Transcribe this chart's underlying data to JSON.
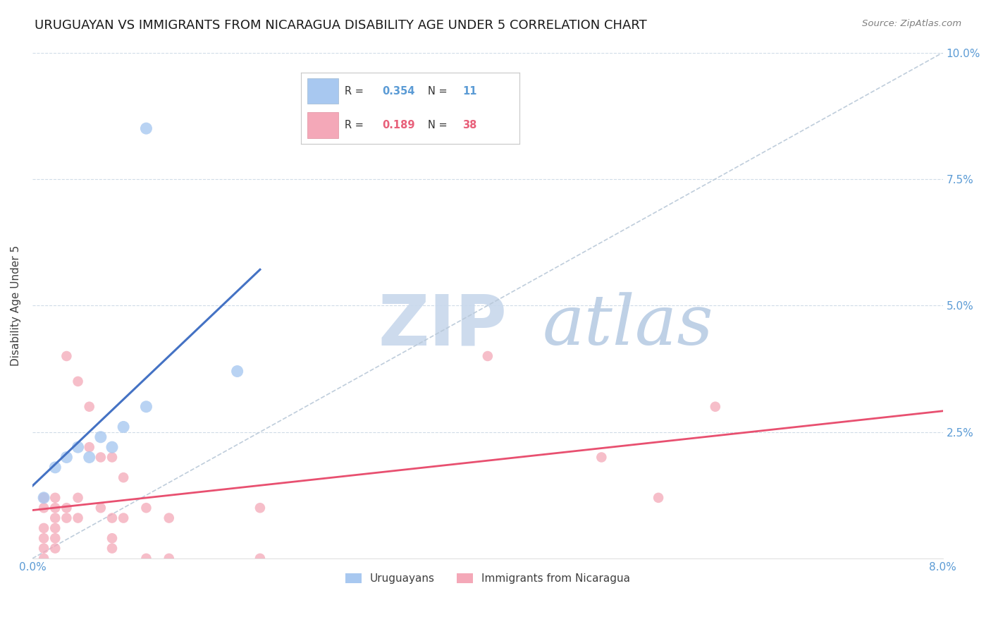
{
  "title": "URUGUAYAN VS IMMIGRANTS FROM NICARAGUA DISABILITY AGE UNDER 5 CORRELATION CHART",
  "source": "Source: ZipAtlas.com",
  "ylabel": "Disability Age Under 5",
  "xlim": [
    0.0,
    0.08
  ],
  "ylim": [
    0.0,
    0.1
  ],
  "xticks": [
    0.0,
    0.08
  ],
  "yticks": [
    0.0,
    0.025,
    0.05,
    0.075,
    0.1
  ],
  "xtick_labels": [
    "0.0%",
    "8.0%"
  ],
  "ytick_labels": [
    "",
    "2.5%",
    "5.0%",
    "7.5%",
    "10.0%"
  ],
  "grid_yticks": [
    0.025,
    0.05,
    0.075,
    0.1
  ],
  "legend_entries": [
    {
      "label": "Uruguayans",
      "R": "0.354",
      "N": "11",
      "color": "#a8c8f0"
    },
    {
      "label": "Immigrants from Nicaragua",
      "R": "0.189",
      "N": "38",
      "color": "#f0a0b8"
    }
  ],
  "uruguayan_points": [
    [
      0.001,
      0.012
    ],
    [
      0.002,
      0.018
    ],
    [
      0.003,
      0.02
    ],
    [
      0.004,
      0.022
    ],
    [
      0.005,
      0.02
    ],
    [
      0.006,
      0.024
    ],
    [
      0.007,
      0.022
    ],
    [
      0.008,
      0.026
    ],
    [
      0.01,
      0.03
    ],
    [
      0.018,
      0.037
    ],
    [
      0.01,
      0.085
    ]
  ],
  "nicaragua_points": [
    [
      0.001,
      0.012
    ],
    [
      0.001,
      0.01
    ],
    [
      0.001,
      0.006
    ],
    [
      0.001,
      0.004
    ],
    [
      0.001,
      0.002
    ],
    [
      0.001,
      0.0
    ],
    [
      0.002,
      0.012
    ],
    [
      0.002,
      0.01
    ],
    [
      0.002,
      0.008
    ],
    [
      0.002,
      0.006
    ],
    [
      0.002,
      0.004
    ],
    [
      0.002,
      0.002
    ],
    [
      0.003,
      0.04
    ],
    [
      0.003,
      0.01
    ],
    [
      0.003,
      0.008
    ],
    [
      0.004,
      0.035
    ],
    [
      0.004,
      0.012
    ],
    [
      0.004,
      0.008
    ],
    [
      0.005,
      0.03
    ],
    [
      0.005,
      0.022
    ],
    [
      0.006,
      0.02
    ],
    [
      0.006,
      0.01
    ],
    [
      0.007,
      0.02
    ],
    [
      0.007,
      0.008
    ],
    [
      0.007,
      0.004
    ],
    [
      0.007,
      0.002
    ],
    [
      0.008,
      0.016
    ],
    [
      0.008,
      0.008
    ],
    [
      0.01,
      0.01
    ],
    [
      0.01,
      0.0
    ],
    [
      0.012,
      0.008
    ],
    [
      0.012,
      0.0
    ],
    [
      0.02,
      0.01
    ],
    [
      0.02,
      0.0
    ],
    [
      0.04,
      0.04
    ],
    [
      0.05,
      0.02
    ],
    [
      0.055,
      0.012
    ],
    [
      0.06,
      0.03
    ]
  ],
  "blue_color": "#5b9bd5",
  "pink_color": "#e8607a",
  "scatter_blue": "#a8c8f0",
  "scatter_pink": "#f4a8b8",
  "trend_blue": "#4472c4",
  "trend_pink": "#e85070",
  "diagonal_color": "#b8c8d8",
  "watermark_zip_color": "#c8d8e8",
  "watermark_atlas_color": "#b0c8e0",
  "background_color": "#ffffff",
  "title_fontsize": 13,
  "axis_label_fontsize": 11,
  "tick_fontsize": 11,
  "legend_fontsize": 11,
  "scatter_size_blue": 150,
  "scatter_size_pink": 110,
  "blue_trend_xlim": [
    0.0,
    0.02
  ],
  "pink_trend_xlim": [
    0.0,
    0.08
  ]
}
